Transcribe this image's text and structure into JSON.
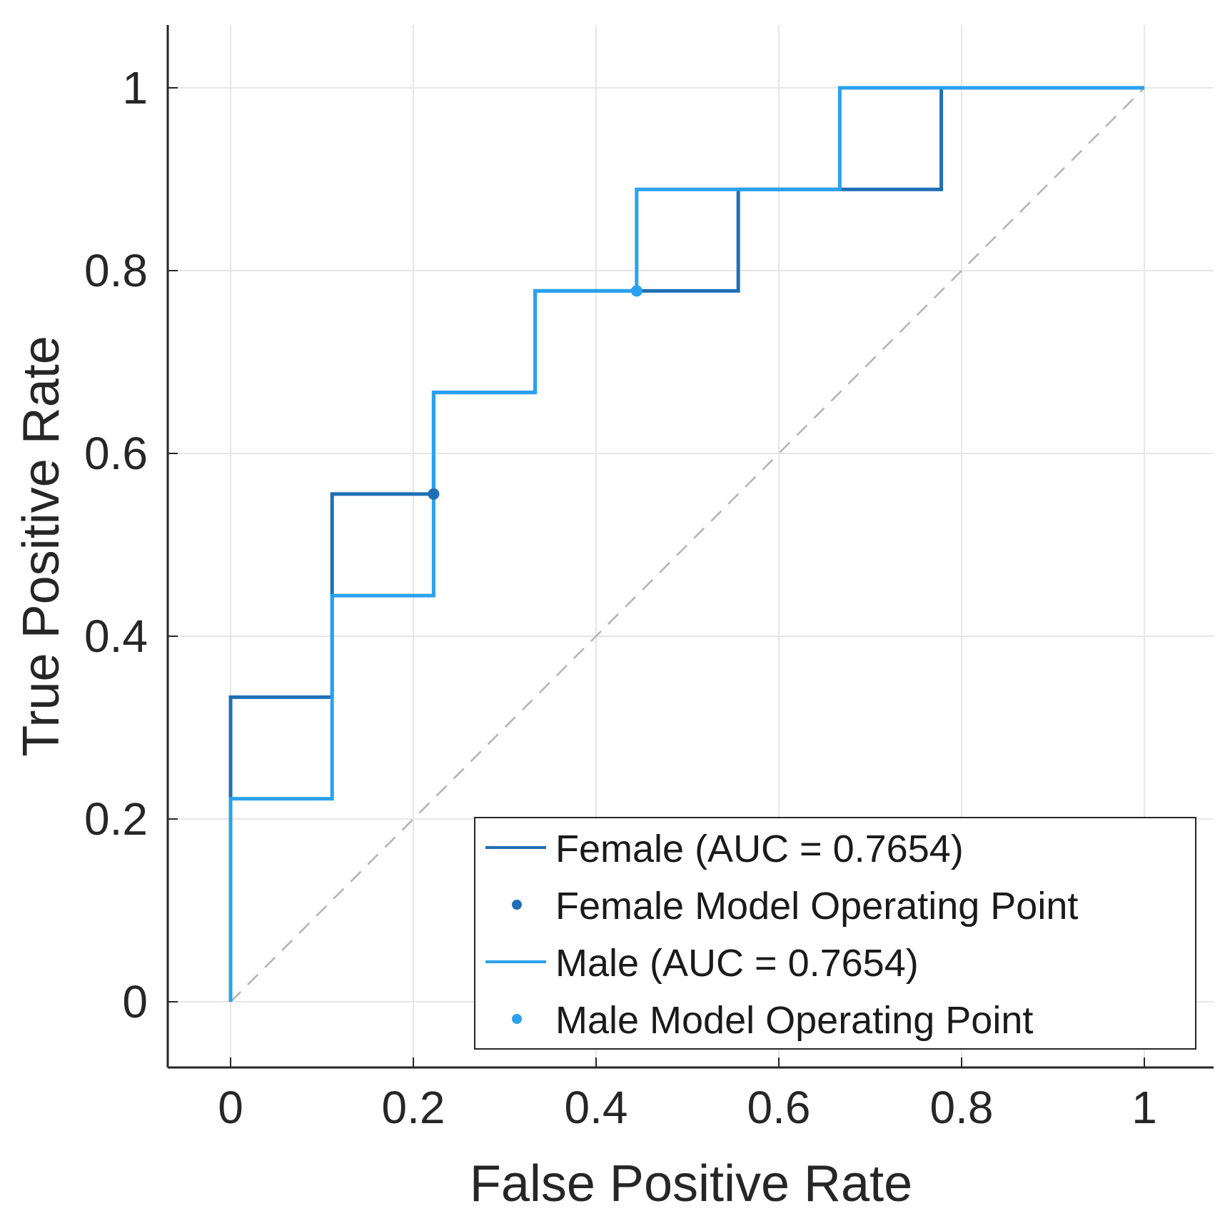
{
  "chart_data": {
    "type": "line",
    "title": "",
    "xlabel": "False Positive Rate",
    "ylabel": "True Positive Rate",
    "xlim": [
      -0.07,
      1.07
    ],
    "ylim": [
      -0.07,
      1.07
    ],
    "xticks": [
      0,
      0.2,
      0.4,
      0.6,
      0.8,
      1
    ],
    "yticks": [
      0,
      0.2,
      0.4,
      0.6,
      0.8,
      1
    ],
    "xtick_labels": [
      "0",
      "0.2",
      "0.4",
      "0.6",
      "0.8",
      "1"
    ],
    "ytick_labels": [
      "0",
      "0.2",
      "0.4",
      "0.6",
      "0.8",
      "1"
    ],
    "grid": true,
    "legend_position": "bottom-right",
    "diagonal": {
      "x": [
        0,
        1
      ],
      "y": [
        0,
        1
      ],
      "style": "dashed",
      "color": "#b3b3b3"
    },
    "series": [
      {
        "name": "Female (AUC = 0.7654)",
        "color": "#1f6fb5",
        "x": [
          0,
          0,
          0.1111,
          0.1111,
          0.2222,
          0.2222,
          0.3333,
          0.3333,
          0.4444,
          0.4444,
          0.5556,
          0.5556,
          0.6667,
          0.7778,
          0.7778,
          1
        ],
        "y": [
          0,
          0.3333,
          0.3333,
          0.5556,
          0.5556,
          0.6667,
          0.6667,
          0.7778,
          0.7778,
          0.7778,
          0.7778,
          0.8889,
          0.8889,
          0.8889,
          1,
          1
        ],
        "operating_point": {
          "name": "Female Model Operating Point",
          "x": 0.2222,
          "y": 0.5556
        }
      },
      {
        "name": "Male (AUC = 0.7654)",
        "color": "#2aa1ee",
        "x": [
          0,
          0,
          0.1111,
          0.1111,
          0.2222,
          0.2222,
          0.3333,
          0.3333,
          0.4444,
          0.4444,
          0.6667,
          0.6667,
          1
        ],
        "y": [
          0,
          0.2222,
          0.2222,
          0.4444,
          0.4444,
          0.6667,
          0.6667,
          0.7778,
          0.7778,
          0.8889,
          0.8889,
          1,
          1
        ],
        "operating_point": {
          "name": "Male Model Operating Point",
          "x": 0.4444,
          "y": 0.7778
        }
      }
    ],
    "legend_entries": [
      "Female (AUC = 0.7654)",
      "Female Model Operating Point",
      "Male (AUC = 0.7654)",
      "Male Model Operating Point"
    ]
  }
}
